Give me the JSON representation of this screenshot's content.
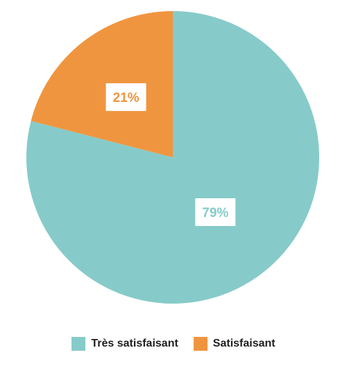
{
  "chart_data": {
    "type": "pie",
    "title": "",
    "start_angle_deg": 0,
    "direction": "clockwise",
    "slices": [
      {
        "label": "Très satisfaisant",
        "value": 79,
        "display": "79%",
        "color": "#86CBC9"
      },
      {
        "label": "Satisfaisant",
        "value": 21,
        "display": "21%",
        "color": "#F0953F"
      }
    ],
    "legend_placement": "bottom"
  }
}
